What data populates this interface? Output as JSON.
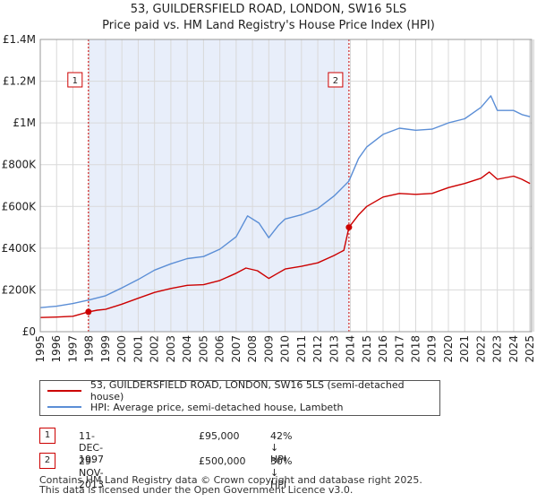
{
  "title": {
    "line1": "53, GUILDERSFIELD ROAD, LONDON, SW16 5LS",
    "line2": "Price paid vs. HM Land Registry's House Price Index (HPI)"
  },
  "chart_data": {
    "type": "line",
    "xlim": [
      1995,
      2025.1
    ],
    "ylim": [
      0,
      1400000
    ],
    "y_ticks": [
      {
        "value": 0,
        "label": "£0"
      },
      {
        "value": 200000,
        "label": "£200K"
      },
      {
        "value": 400000,
        "label": "£400K"
      },
      {
        "value": 600000,
        "label": "£600K"
      },
      {
        "value": 800000,
        "label": "£800K"
      },
      {
        "value": 1000000,
        "label": "£1M"
      },
      {
        "value": 1200000,
        "label": "£1.2M"
      },
      {
        "value": 1400000,
        "label": "£1.4M"
      }
    ],
    "x_ticks": [
      1995,
      1996,
      1997,
      1998,
      1999,
      2000,
      2001,
      2002,
      2003,
      2004,
      2005,
      2006,
      2007,
      2008,
      2009,
      2010,
      2011,
      2012,
      2013,
      2014,
      2015,
      2016,
      2017,
      2018,
      2019,
      2020,
      2021,
      2022,
      2023,
      2024,
      2025
    ],
    "grid": true,
    "shaded_period": [
      1997.95,
      2013.91
    ],
    "series": [
      {
        "name": "53, GUILDERSFIELD ROAD, LONDON, SW16 5LS (semi-detached house)",
        "color": "#cc0000",
        "points": [
          [
            1995.0,
            68000
          ],
          [
            1996.0,
            70000
          ],
          [
            1997.0,
            74000
          ],
          [
            1997.95,
            95000
          ],
          [
            1998.5,
            103000
          ],
          [
            1999.0,
            107000
          ],
          [
            2000.0,
            132000
          ],
          [
            2001.0,
            160000
          ],
          [
            2002.0,
            188000
          ],
          [
            2003.0,
            207000
          ],
          [
            2004.0,
            222000
          ],
          [
            2005.0,
            225000
          ],
          [
            2006.0,
            245000
          ],
          [
            2007.0,
            280000
          ],
          [
            2007.6,
            305000
          ],
          [
            2008.3,
            292000
          ],
          [
            2009.0,
            255000
          ],
          [
            2009.5,
            278000
          ],
          [
            2010.0,
            300000
          ],
          [
            2011.0,
            313000
          ],
          [
            2012.0,
            330000
          ],
          [
            2013.0,
            365000
          ],
          [
            2013.6,
            390000
          ],
          [
            2013.91,
            500000
          ],
          [
            2014.5,
            560000
          ],
          [
            2015.0,
            600000
          ],
          [
            2016.0,
            645000
          ],
          [
            2017.0,
            662000
          ],
          [
            2018.0,
            658000
          ],
          [
            2019.0,
            662000
          ],
          [
            2020.0,
            690000
          ],
          [
            2021.0,
            710000
          ],
          [
            2022.0,
            735000
          ],
          [
            2022.5,
            765000
          ],
          [
            2023.0,
            730000
          ],
          [
            2024.0,
            745000
          ],
          [
            2024.5,
            730000
          ],
          [
            2025.0,
            710000
          ]
        ]
      },
      {
        "name": "HPI: Average price, semi-detached house, Lambeth",
        "color": "#5b8ed6",
        "points": [
          [
            1995.0,
            115000
          ],
          [
            1996.0,
            122000
          ],
          [
            1997.0,
            135000
          ],
          [
            1998.0,
            152000
          ],
          [
            1999.0,
            172000
          ],
          [
            2000.0,
            210000
          ],
          [
            2001.0,
            250000
          ],
          [
            2002.0,
            295000
          ],
          [
            2003.0,
            325000
          ],
          [
            2004.0,
            350000
          ],
          [
            2005.0,
            360000
          ],
          [
            2006.0,
            395000
          ],
          [
            2007.0,
            455000
          ],
          [
            2007.7,
            555000
          ],
          [
            2008.4,
            520000
          ],
          [
            2009.0,
            450000
          ],
          [
            2009.6,
            510000
          ],
          [
            2010.0,
            540000
          ],
          [
            2011.0,
            560000
          ],
          [
            2012.0,
            590000
          ],
          [
            2013.0,
            650000
          ],
          [
            2013.9,
            720000
          ],
          [
            2014.5,
            830000
          ],
          [
            2015.0,
            885000
          ],
          [
            2016.0,
            945000
          ],
          [
            2017.0,
            975000
          ],
          [
            2018.0,
            965000
          ],
          [
            2019.0,
            970000
          ],
          [
            2020.0,
            1000000
          ],
          [
            2021.0,
            1020000
          ],
          [
            2022.0,
            1075000
          ],
          [
            2022.6,
            1130000
          ],
          [
            2023.0,
            1060000
          ],
          [
            2024.0,
            1060000
          ],
          [
            2024.5,
            1040000
          ],
          [
            2025.0,
            1030000
          ]
        ]
      }
    ],
    "sales": [
      {
        "id": "1",
        "year": 1997.95,
        "price": 95000
      },
      {
        "id": "2",
        "year": 2013.91,
        "price": 500000
      }
    ],
    "marker_labels": [
      "1",
      "2"
    ]
  },
  "legend": {
    "items": [
      {
        "label": "53, GUILDERSFIELD ROAD, LONDON, SW16 5LS (semi-detached house)",
        "color": "#cc0000"
      },
      {
        "label": "HPI: Average price, semi-detached house, Lambeth",
        "color": "#5b8ed6"
      }
    ]
  },
  "sales_table": [
    {
      "num": "1",
      "date": "11-DEC-1997",
      "price": "£95,000",
      "hpi": "42% ↓ HPI"
    },
    {
      "num": "2",
      "date": "29-NOV-2013",
      "price": "£500,000",
      "hpi": "30% ↓ HPI"
    }
  ],
  "footer": {
    "line1": "Contains HM Land Registry data © Crown copyright and database right 2025.",
    "line2": "This data is licensed under the Open Government Licence v3.0."
  }
}
